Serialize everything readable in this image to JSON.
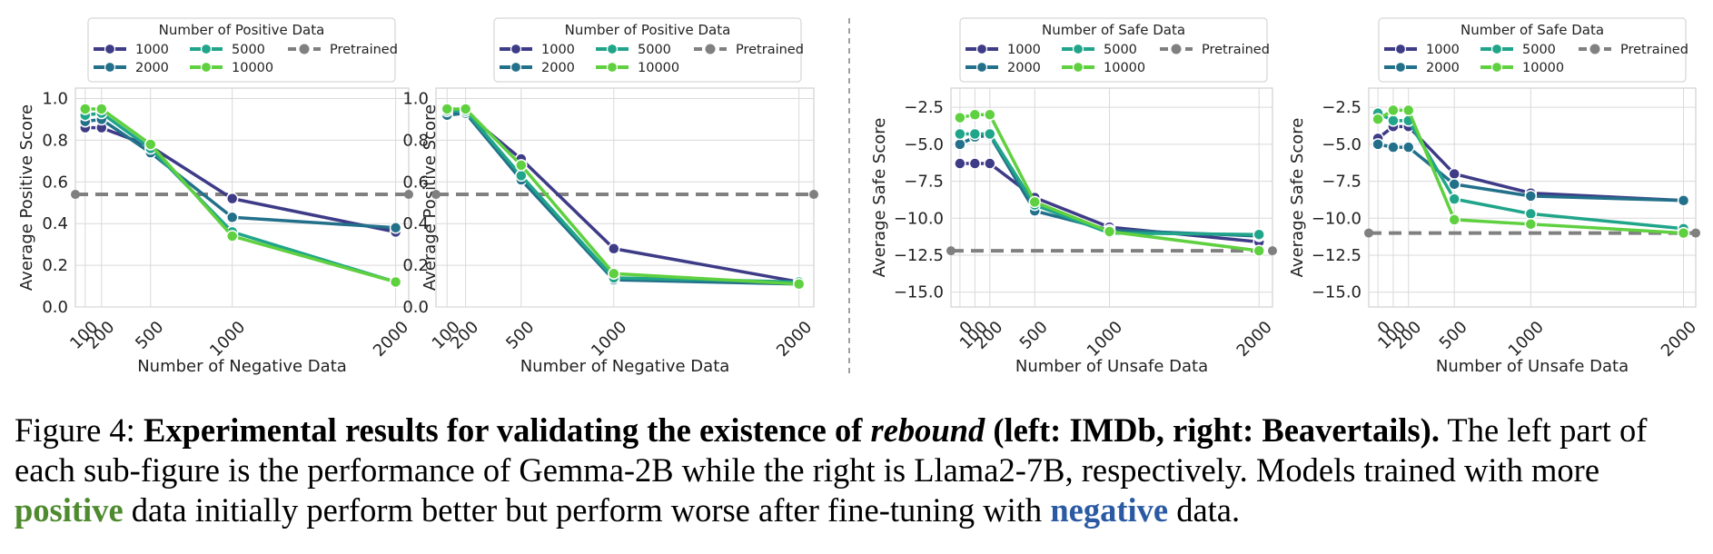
{
  "colors": {
    "series": {
      "1000": "#3e3b87",
      "2000": "#23708a",
      "5000": "#20a58a",
      "10000": "#5fd03f"
    },
    "pretrained": "#808080",
    "grid": "#d9d9d9",
    "frame": "#d0d0d0",
    "positive_word": "#4e8a2e",
    "negative_word": "#2a5aa3"
  },
  "chart_data": [
    {
      "type": "line",
      "legend_title": "Number of Positive Data",
      "legend_pretrained": "Pretrained",
      "xlabel": "Number of Negative Data",
      "ylabel": "Average Positive Score",
      "x": [
        100,
        200,
        500,
        1000,
        2000
      ],
      "xticks": [
        "100",
        "200",
        "500",
        "1000",
        "2000"
      ],
      "ylim": [
        0.0,
        1.05
      ],
      "yticks": [
        "0.0",
        "0.2",
        "0.4",
        "0.6",
        "0.8",
        "1.0"
      ],
      "grid": true,
      "legend_position": "top",
      "pretrained": 0.54,
      "series": [
        {
          "name": "1000",
          "values": [
            0.86,
            0.86,
            0.77,
            0.52,
            0.36
          ]
        },
        {
          "name": "2000",
          "values": [
            0.89,
            0.9,
            0.74,
            0.43,
            0.38
          ]
        },
        {
          "name": "5000",
          "values": [
            0.92,
            0.93,
            0.76,
            0.36,
            0.12
          ]
        },
        {
          "name": "10000",
          "values": [
            0.95,
            0.95,
            0.78,
            0.34,
            0.12
          ]
        }
      ]
    },
    {
      "type": "line",
      "legend_title": "Number of Positive Data",
      "legend_pretrained": "Pretrained",
      "xlabel": "Number of Negative Data",
      "ylabel": "Average Positive Score",
      "x": [
        100,
        200,
        500,
        1000,
        2000
      ],
      "xticks": [
        "100",
        "200",
        "500",
        "1000",
        "2000"
      ],
      "ylim": [
        0.0,
        1.05
      ],
      "yticks": [
        "0.0",
        "0.2",
        "0.4",
        "0.6",
        "0.8",
        "1.0"
      ],
      "grid": true,
      "legend_position": "top",
      "pretrained": 0.54,
      "series": [
        {
          "name": "1000",
          "values": [
            0.93,
            0.93,
            0.71,
            0.28,
            0.12
          ]
        },
        {
          "name": "2000",
          "values": [
            0.92,
            0.93,
            0.61,
            0.13,
            0.11
          ]
        },
        {
          "name": "5000",
          "values": [
            0.94,
            0.94,
            0.63,
            0.14,
            0.12
          ]
        },
        {
          "name": "10000",
          "values": [
            0.95,
            0.95,
            0.68,
            0.16,
            0.11
          ]
        }
      ]
    },
    {
      "type": "line",
      "legend_title": "Number of Safe Data",
      "legend_pretrained": "Pretrained",
      "xlabel": "Number of Unsafe Data",
      "ylabel": "Average Safe Score",
      "x": [
        0,
        100,
        200,
        500,
        1000,
        2000
      ],
      "xticks": [
        "0",
        "100",
        "200",
        "500",
        "1000",
        "2000"
      ],
      "ylim": [
        -16.0,
        -1.2
      ],
      "yticks": [
        "−2.5",
        "−5.0",
        "−7.5",
        "−10.0",
        "−12.5",
        "−15.0"
      ],
      "ytick_values": [
        -2.5,
        -5.0,
        -7.5,
        -10.0,
        -12.5,
        -15.0
      ],
      "grid": true,
      "legend_position": "top",
      "pretrained": -12.2,
      "series": [
        {
          "name": "1000",
          "values": [
            -6.3,
            -6.3,
            -6.3,
            -8.6,
            -10.6,
            -11.6
          ]
        },
        {
          "name": "2000",
          "values": [
            -5.0,
            -4.5,
            -4.4,
            -9.5,
            -10.8,
            -11.2
          ]
        },
        {
          "name": "5000",
          "values": [
            -4.3,
            -4.3,
            -4.3,
            -9.1,
            -11.0,
            -11.1
          ]
        },
        {
          "name": "10000",
          "values": [
            -3.2,
            -3.0,
            -3.0,
            -8.9,
            -10.9,
            -12.2
          ]
        }
      ]
    },
    {
      "type": "line",
      "legend_title": "Number of Safe Data",
      "legend_pretrained": "Pretrained",
      "xlabel": "Number of Unsafe Data",
      "ylabel": "Average Safe Score",
      "x": [
        0,
        100,
        200,
        500,
        1000,
        2000
      ],
      "xticks": [
        "0",
        "100",
        "200",
        "500",
        "1000",
        "2000"
      ],
      "ylim": [
        -16.0,
        -1.2
      ],
      "yticks": [
        "−2.5",
        "−5.0",
        "−7.5",
        "−10.0",
        "−12.5",
        "−15.0"
      ],
      "ytick_values": [
        -2.5,
        -5.0,
        -7.5,
        -10.0,
        -12.5,
        -15.0
      ],
      "grid": true,
      "legend_position": "top",
      "pretrained": -11.0,
      "series": [
        {
          "name": "1000",
          "values": [
            -4.6,
            -3.8,
            -3.8,
            -7.0,
            -8.3,
            -8.8
          ]
        },
        {
          "name": "2000",
          "values": [
            -5.0,
            -5.2,
            -5.2,
            -7.7,
            -8.5,
            -8.8
          ]
        },
        {
          "name": "5000",
          "values": [
            -2.9,
            -3.4,
            -3.4,
            -8.7,
            -9.7,
            -10.7
          ]
        },
        {
          "name": "10000",
          "values": [
            -3.3,
            -2.7,
            -2.7,
            -10.1,
            -10.4,
            -11.0
          ]
        }
      ]
    }
  ],
  "caption": {
    "prefix": "Figure 4: ",
    "bold1": "Experimental results for validating the existence of ",
    "bold_italic": "rebound",
    "bold2": " (left: IMDb, right: Beavertails).",
    "text1": " The left part of each sub-figure is the performance of Gemma-2B while the right is Llama2-7B, respectively. Models trained with more ",
    "positive_word": "positive",
    "text2": " data initially perform better but perform worse after fine-tuning with ",
    "negative_word": "negative",
    "text3": " data."
  }
}
